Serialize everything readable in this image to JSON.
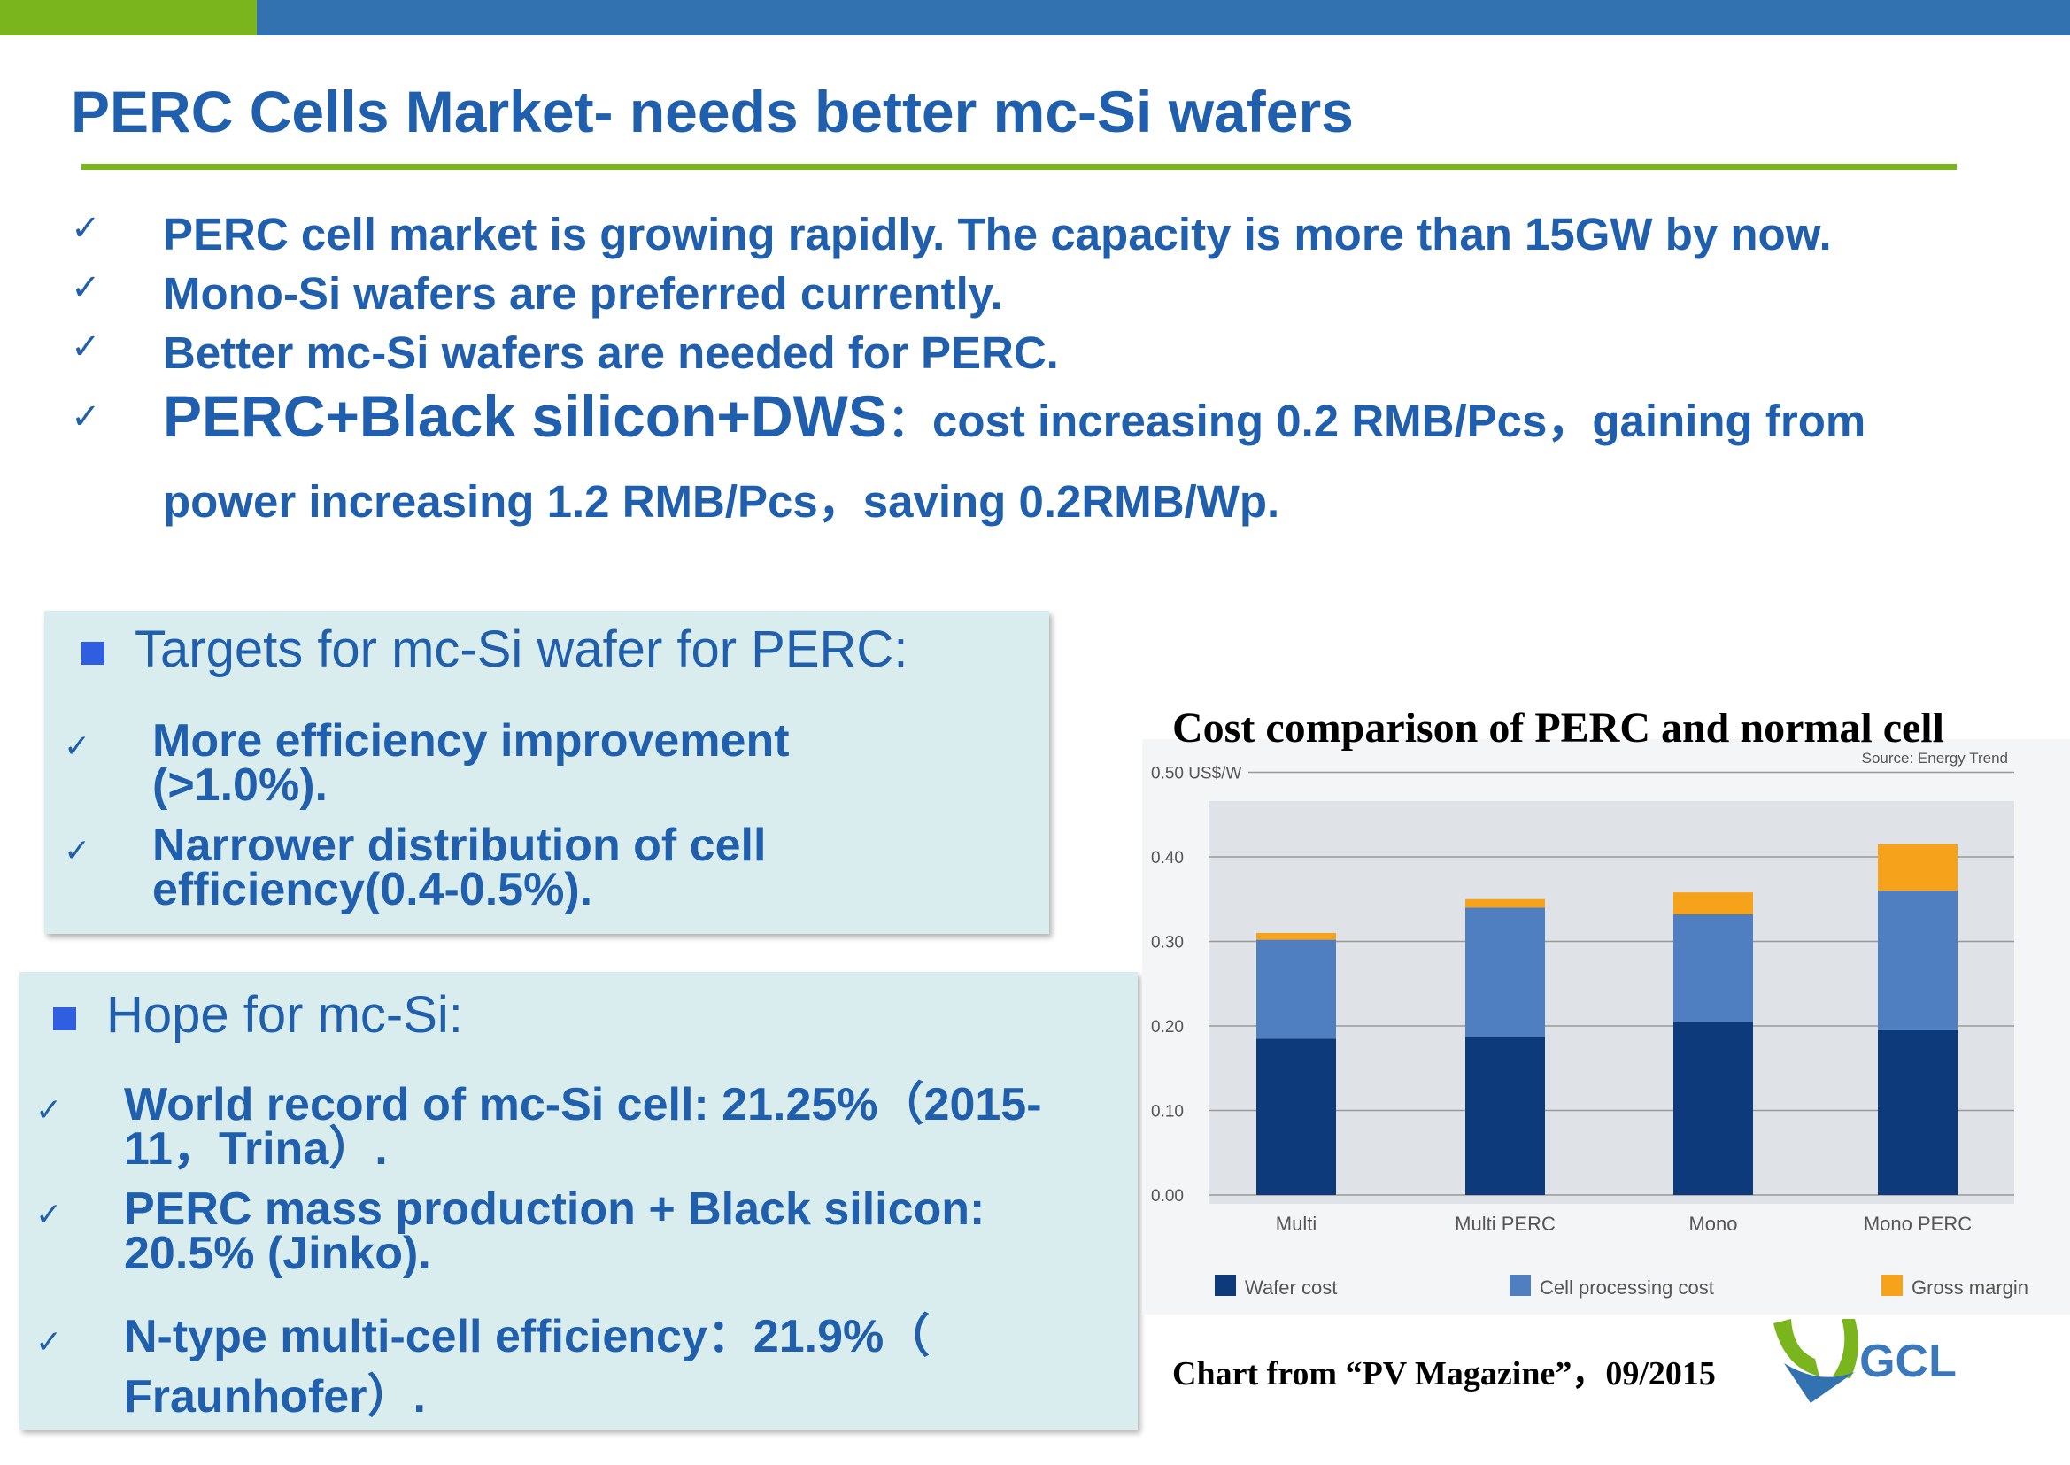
{
  "title": "PERC Cells Market- needs better mc-Si wafers",
  "bullets": [
    "PERC cell market is growing rapidly. The capacity is more than 15GW by now.",
    "Mono-Si wafers are preferred currently.",
    "Better mc-Si wafers are needed for PERC."
  ],
  "bullet4": {
    "lead": "PERC+Black silicon+DWS",
    "rest": "：cost increasing 0.2 RMB/Pcs，gaining from",
    "line2": "power increasing 1.2 RMB/Pcs，saving 0.2RMB/Wp."
  },
  "check_glyph": "✓",
  "targets": {
    "heading": "Targets for mc-Si wafer for PERC:",
    "items": [
      [
        "More efficiency improvement",
        "(>1.0%)."
      ],
      [
        "Narrower distribution of cell",
        "efficiency(0.4-0.5%)."
      ]
    ]
  },
  "hope": {
    "heading": "Hope for mc-Si:",
    "items": [
      [
        "World record of mc-Si cell: 21.25%（2015-",
        "11，Trina）."
      ],
      [
        "PERC mass production + Black silicon:",
        "20.5% (Jinko)."
      ],
      [
        "N-type multi-cell efficiency：21.9%（",
        "Fraunhofer）."
      ]
    ]
  },
  "chart_caption": "Chart from “PV Magazine”，09/2015",
  "logo_text": "GCL",
  "chart_data": {
    "type": "bar",
    "stacked": true,
    "title": "Cost comparison of PERC and normal cell",
    "source": "Source: Energy Trend",
    "ylabel": "US$/W",
    "ylim": [
      0,
      0.5
    ],
    "yticks": [
      "0.00",
      "0.10",
      "0.20",
      "0.30",
      "0.40",
      "0.50 US$/W"
    ],
    "categories": [
      "Multi",
      "Multi PERC",
      "Mono",
      "Mono PERC"
    ],
    "series": [
      {
        "name": "Wafer cost",
        "color": "#0d3a7a",
        "values": [
          0.185,
          0.187,
          0.205,
          0.195
        ]
      },
      {
        "name": "Cell processing cost",
        "color": "#4f7fc0",
        "values": [
          0.117,
          0.153,
          0.127,
          0.165
        ]
      },
      {
        "name": "Gross margin",
        "color": "#f7a21b",
        "values": [
          0.008,
          0.01,
          0.026,
          0.055
        ]
      }
    ],
    "legend": "bottom",
    "grid": true
  }
}
